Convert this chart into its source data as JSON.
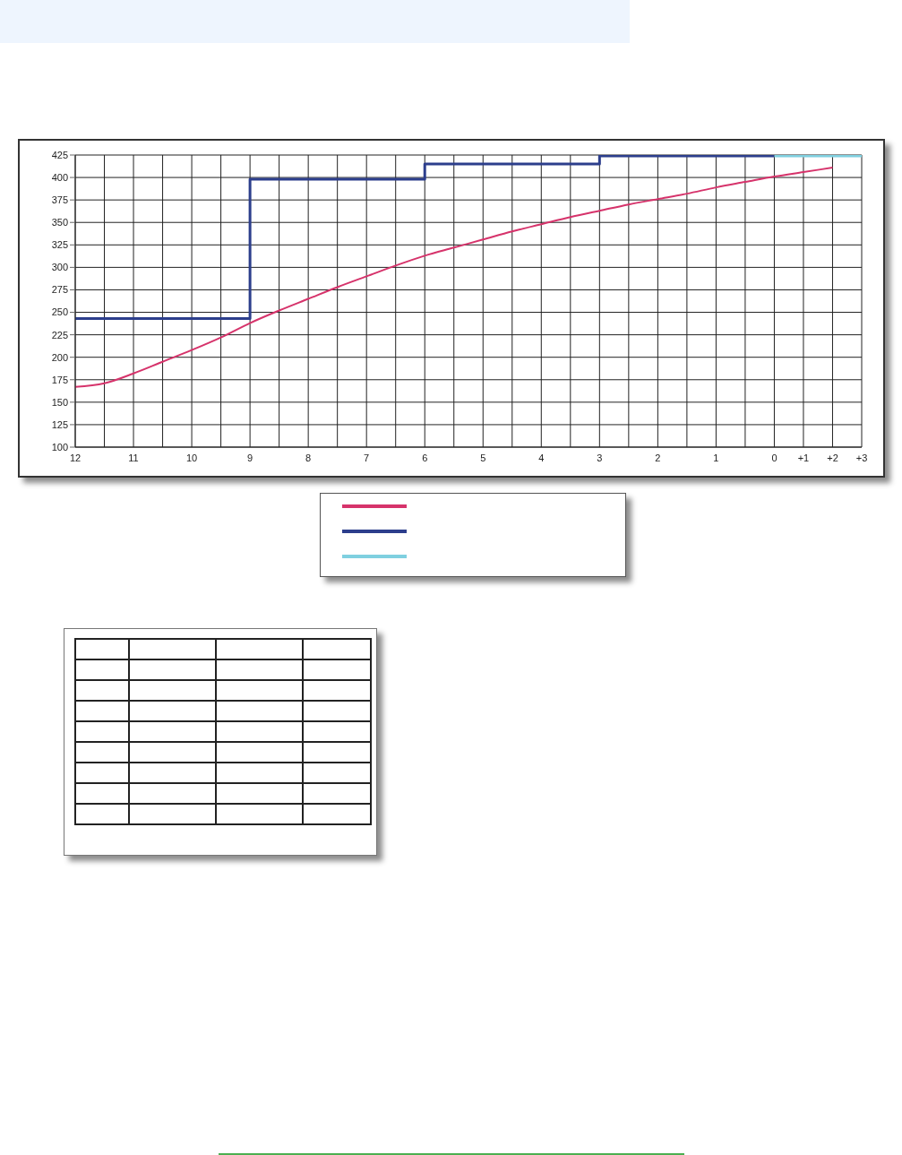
{
  "chart_data": {
    "type": "line",
    "categories": [
      "12",
      null,
      "11",
      null,
      "10",
      null,
      "9",
      null,
      "8",
      null,
      "7",
      null,
      "6",
      null,
      "5",
      null,
      "4",
      null,
      "3",
      null,
      "2",
      null,
      "1",
      null,
      "0",
      "+1",
      "+2",
      "+3"
    ],
    "series": [
      {
        "type": "line",
        "color": "#d6336b",
        "values": [
          167,
          171,
          182,
          195,
          208,
          222,
          238,
          252,
          265,
          278,
          290,
          302,
          313,
          322,
          331,
          340,
          348,
          356,
          363,
          370,
          376,
          382,
          389,
          395,
          401,
          406,
          411,
          null
        ]
      },
      {
        "type": "step",
        "color": "#2c3e8c",
        "values": [
          243,
          243,
          243,
          243,
          243,
          243,
          398,
          398,
          398,
          398,
          398,
          398,
          415,
          415,
          415,
          415,
          415,
          415,
          424,
          424,
          424,
          424,
          424,
          424,
          424,
          null,
          null,
          null
        ]
      },
      {
        "type": "line",
        "color": "#7fd0e0",
        "values": [
          null,
          null,
          null,
          null,
          null,
          null,
          null,
          null,
          null,
          null,
          null,
          null,
          null,
          null,
          null,
          null,
          null,
          null,
          null,
          null,
          null,
          null,
          null,
          null,
          424,
          424,
          424,
          424
        ]
      }
    ],
    "ylim": [
      100,
      425
    ],
    "yticks": [
      100,
      125,
      150,
      175,
      200,
      225,
      250,
      275,
      300,
      325,
      350,
      375,
      400,
      425
    ],
    "grid": true
  }
}
